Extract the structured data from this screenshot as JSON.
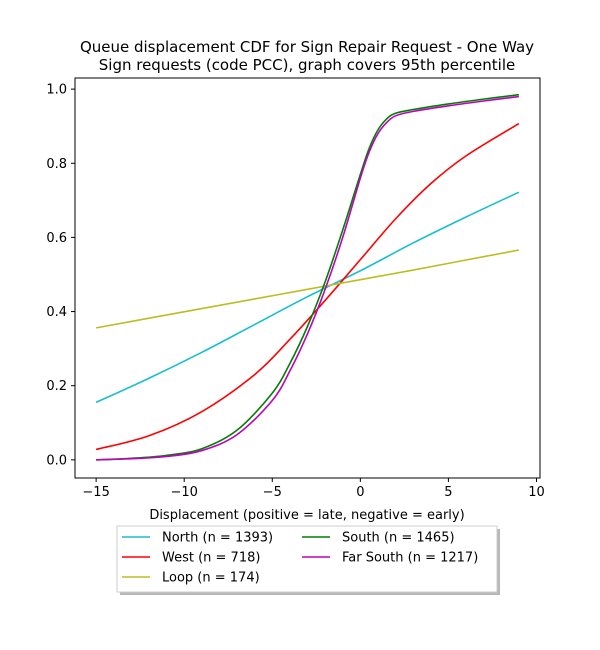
{
  "chart_data": {
    "type": "line",
    "title": "Queue displacement CDF for Sign Repair Request - One Way\nSign  requests (code PCC), graph covers 95th percentile",
    "xlabel": "Displacement (positive = late, negative = early)",
    "ylabel": "",
    "xlim": [
      -16.2,
      10.2
    ],
    "ylim": [
      -0.049,
      1.03
    ],
    "xticks": [
      -15,
      -10,
      -5,
      0,
      5,
      10
    ],
    "yticks": [
      0.0,
      0.2,
      0.4,
      0.6,
      0.8,
      1.0
    ],
    "xtick_labels": [
      "−15",
      "−10",
      "−5",
      "0",
      "5",
      "10"
    ],
    "ytick_labels": [
      "0.0",
      "0.2",
      "0.4",
      "0.6",
      "0.8",
      "1.0"
    ],
    "grid": false,
    "legend_position": "below",
    "series": [
      {
        "name": "North (n = 1393)",
        "color": "#17becf",
        "x": [
          -15,
          -12,
          -9,
          -6,
          -3,
          0,
          3,
          6,
          9
        ],
        "y": [
          0.155,
          0.22,
          0.29,
          0.365,
          0.44,
          0.51,
          0.585,
          0.655,
          0.722
        ]
      },
      {
        "name": "West (n = 718)",
        "color": "#ff0000",
        "x": [
          -15,
          -12,
          -9,
          -6,
          -4,
          -2,
          0,
          2,
          4,
          6,
          9
        ],
        "y": [
          0.028,
          0.065,
          0.13,
          0.23,
          0.325,
          0.43,
          0.54,
          0.65,
          0.745,
          0.82,
          0.907
        ]
      },
      {
        "name": "Loop (n = 174)",
        "color": "#bcbd22",
        "x": [
          -15,
          -12,
          -9,
          -6,
          -3,
          0,
          3,
          6,
          9
        ],
        "y": [
          0.356,
          0.382,
          0.408,
          0.434,
          0.46,
          0.486,
          0.512,
          0.539,
          0.566
        ]
      },
      {
        "name": "South (n = 1465)",
        "color": "#008000",
        "x": [
          -15,
          -13,
          -11,
          -9,
          -7,
          -5,
          -4,
          -3,
          -2,
          -1,
          0,
          0.5,
          1,
          1.5,
          2,
          3,
          5,
          7,
          9
        ],
        "y": [
          0.0,
          0.004,
          0.012,
          0.03,
          0.08,
          0.18,
          0.26,
          0.36,
          0.48,
          0.62,
          0.77,
          0.84,
          0.89,
          0.92,
          0.935,
          0.945,
          0.96,
          0.973,
          0.985
        ]
      },
      {
        "name": "Far South (n = 1217)",
        "color": "#bf00bf",
        "x": [
          -15,
          -13,
          -11,
          -9,
          -7,
          -5,
          -4,
          -3,
          -2,
          -1,
          0,
          0.5,
          1,
          1.5,
          2,
          3,
          5,
          7,
          9
        ],
        "y": [
          0.0,
          0.003,
          0.009,
          0.025,
          0.068,
          0.16,
          0.24,
          0.34,
          0.46,
          0.6,
          0.76,
          0.83,
          0.88,
          0.91,
          0.928,
          0.94,
          0.955,
          0.968,
          0.98
        ]
      }
    ]
  }
}
